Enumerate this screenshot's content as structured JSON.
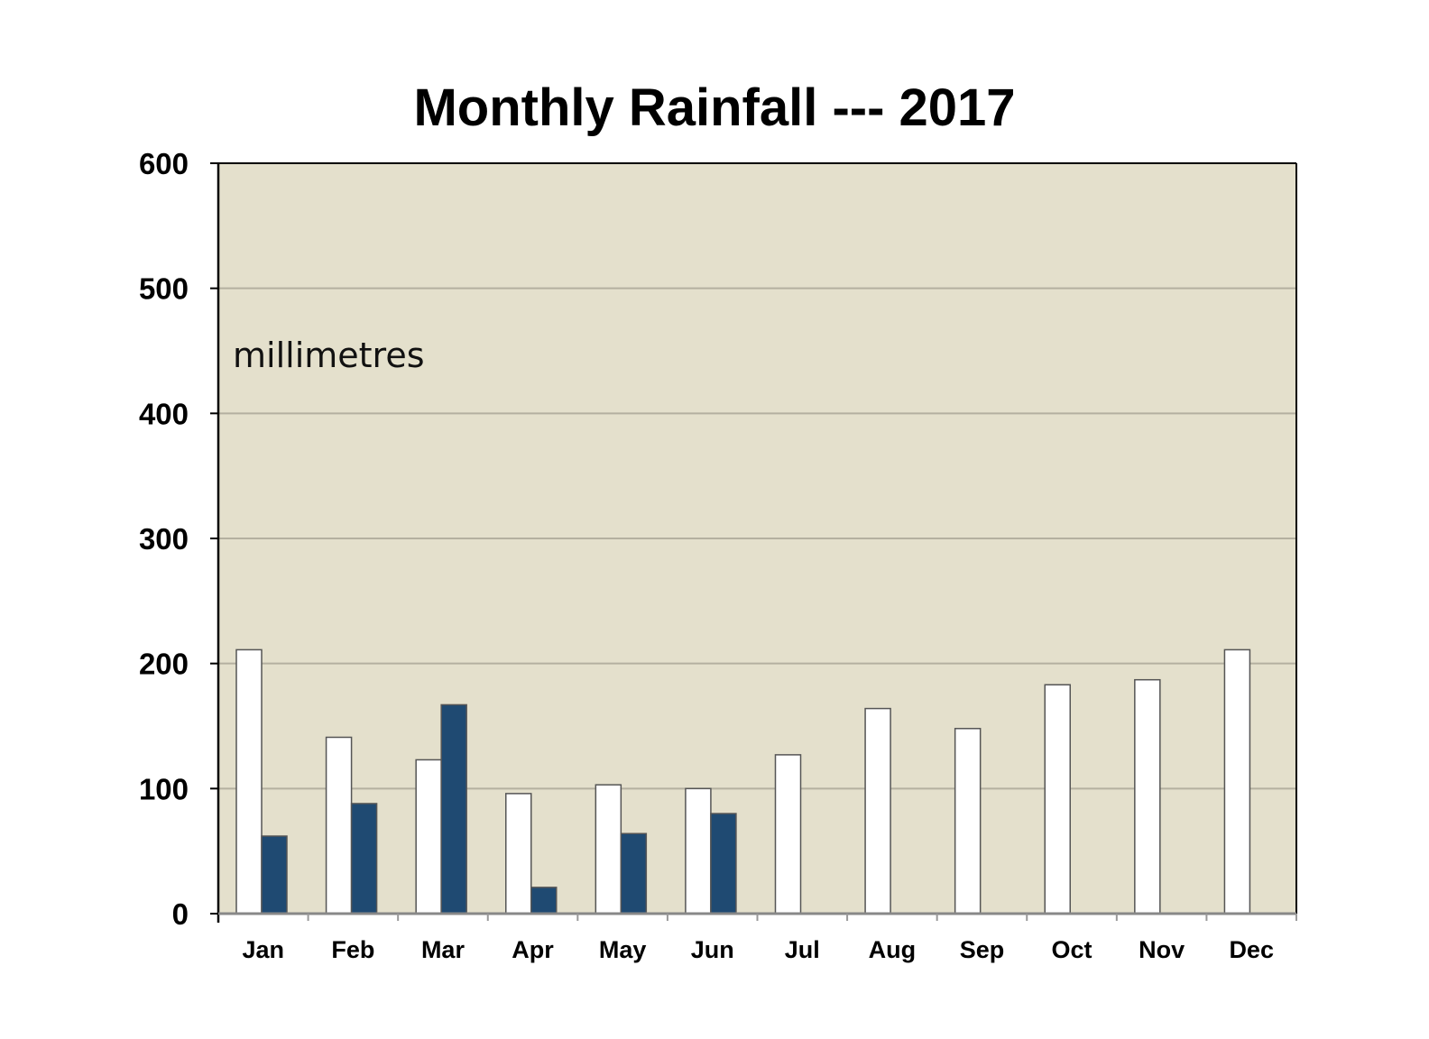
{
  "chart_data": {
    "type": "bar",
    "title": "Monthly Rainfall --- 2017",
    "annotation": "millimetres",
    "xlabel": "",
    "ylabel": "",
    "ylim": [
      0,
      600
    ],
    "yticks": [
      "0",
      "100",
      "200",
      "300",
      "400",
      "500",
      "600"
    ],
    "grid": true,
    "legend": "none",
    "categories": [
      "Jan",
      "Feb",
      "Mar",
      "Apr",
      "May",
      "Jun",
      "Jul",
      "Aug",
      "Sep",
      "Oct",
      "Nov",
      "Dec"
    ],
    "series": [
      {
        "color": "#ffffff",
        "values": [
          211,
          141,
          123,
          96,
          103,
          100,
          127,
          164,
          148,
          183,
          187,
          211
        ]
      },
      {
        "color": "#1f4a72",
        "values": [
          62,
          88,
          167,
          21,
          64,
          80,
          null,
          null,
          null,
          null,
          null,
          null
        ]
      }
    ],
    "colors": {
      "plot_background": "#e4e0cc",
      "gridline": "#b4b0a0",
      "axis": "#000000",
      "bar_outline": "#555555"
    }
  }
}
